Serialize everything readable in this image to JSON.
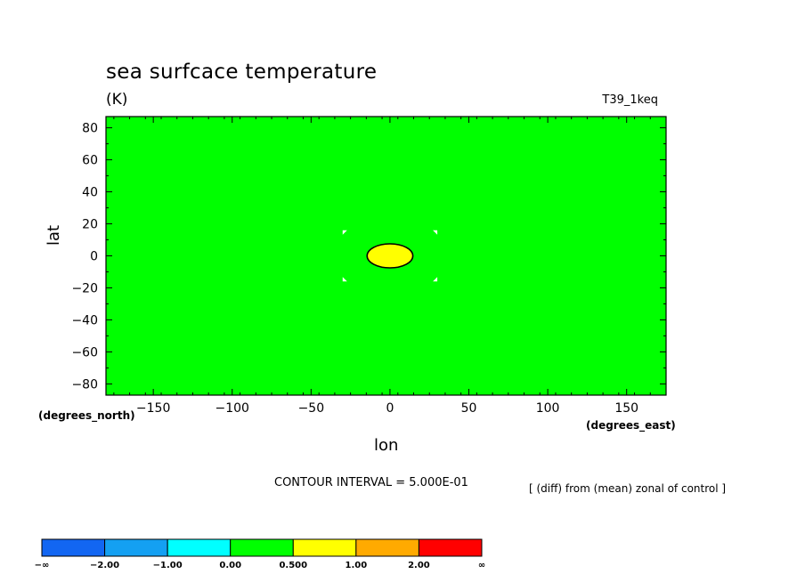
{
  "chart_data": {
    "type": "heatmap",
    "title": "sea surfcace temperature",
    "units": "(K)",
    "run_id": "T39_1keq",
    "xlabel": "lon",
    "ylabel": "lat",
    "xlabel_units": "(degrees_east)",
    "ylabel_units": "(degrees_north)",
    "xlim": [
      -180,
      175
    ],
    "ylim": [
      -87,
      87
    ],
    "xticks": [
      -150,
      -100,
      -50,
      0,
      50,
      100,
      150
    ],
    "yticks": [
      -80,
      -60,
      -40,
      -20,
      0,
      20,
      40,
      60,
      80
    ],
    "xtick_labels": [
      "−150",
      "−100",
      "−50",
      "0",
      "50",
      "100",
      "150"
    ],
    "ytick_labels": [
      "−80",
      "−60",
      "−40",
      "−20",
      "0",
      "20",
      "40",
      "60",
      "80"
    ],
    "background_value_range": [
      0.0,
      0.5
    ],
    "anomaly": {
      "lon_center": 0,
      "lat_center": 0,
      "lon_halfwidth": 14.5,
      "lat_halfwidth": 7.5,
      "value_range": [
        0.5,
        1.0
      ]
    },
    "contour_interval_text": "CONTOUR INTERVAL = 5.000E-01",
    "note": "[ (diff) from (mean) zonal of control ]",
    "colorbar": {
      "labels": [
        "−∞",
        "−2.00",
        "−1.00",
        "0.00",
        "0.500",
        "1.00",
        "2.00",
        "∞"
      ],
      "colors": [
        "#1266f2",
        "#14a0f2",
        "#00ffff",
        "#00ff00",
        "#ffff00",
        "#ffaa00",
        "#ff0000"
      ]
    }
  }
}
